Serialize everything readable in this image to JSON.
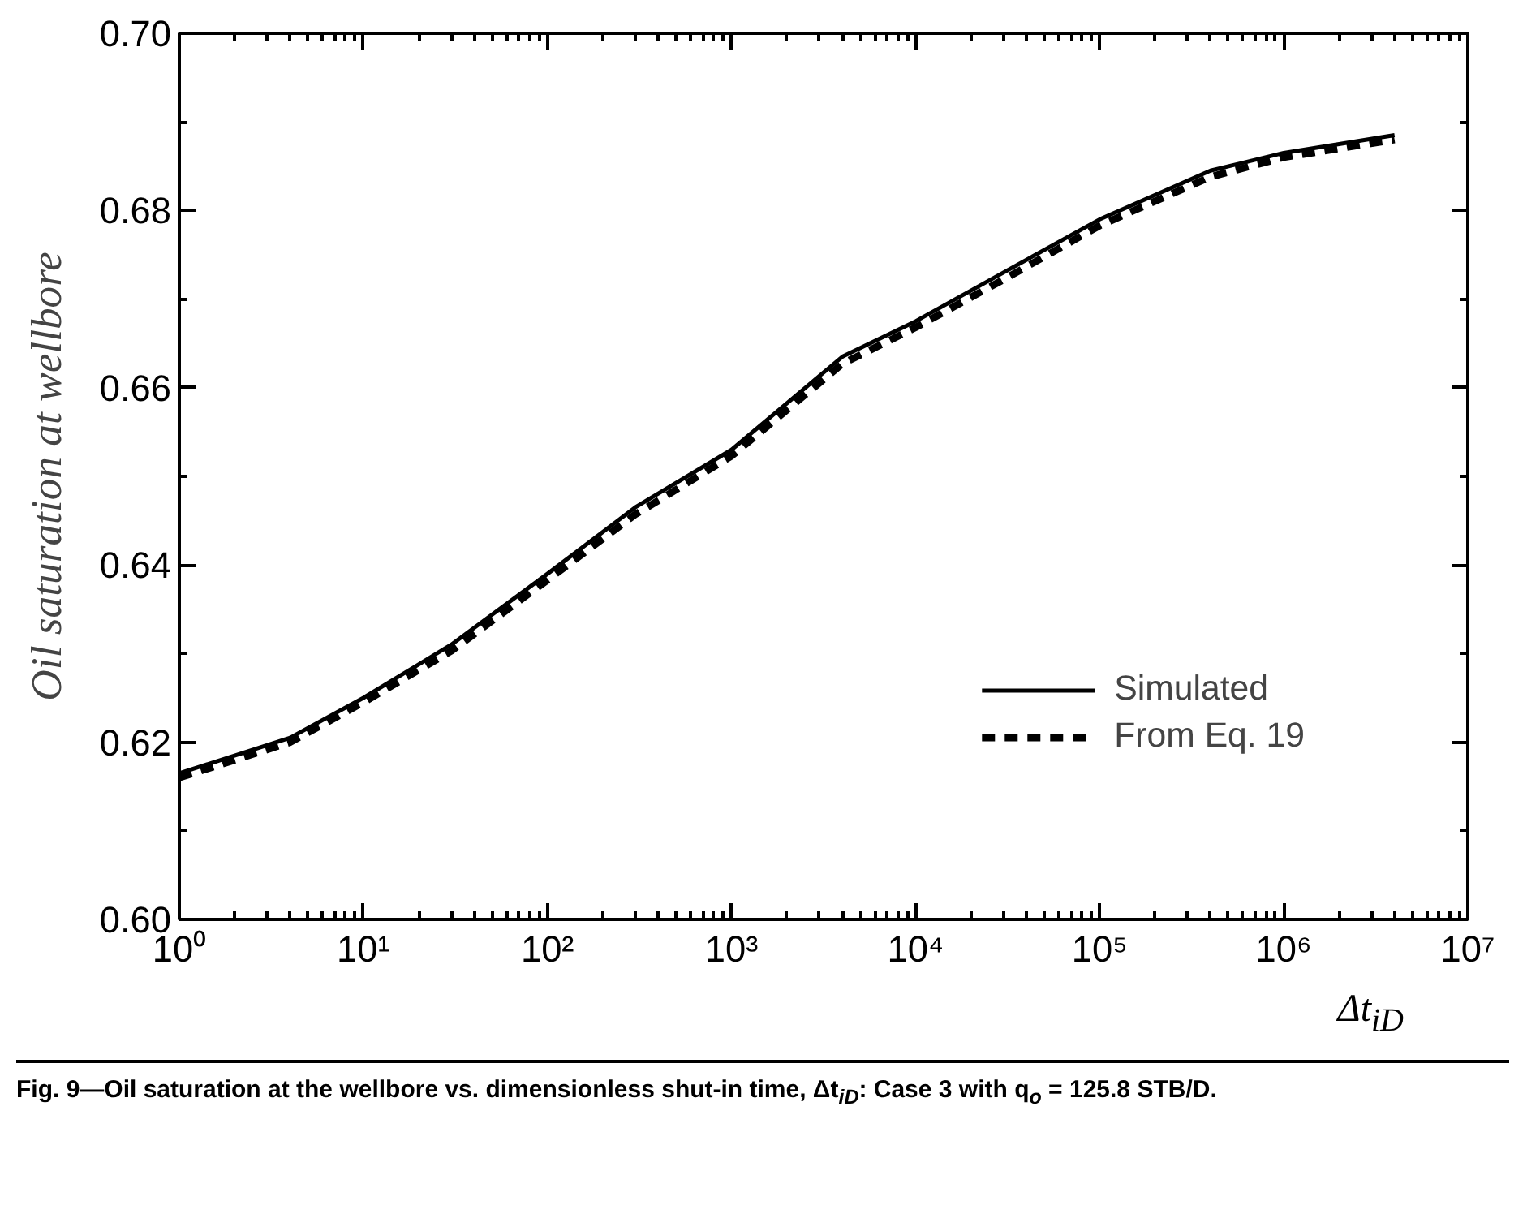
{
  "chart_data": {
    "type": "line",
    "xlabel": "Δt$_{iD}$",
    "ylabel": "Oil saturation at wellbore",
    "annotations": [
      "Fig. 9—Oil saturation at the wellbore vs. dimensionless shut-in time, Δt$_{iD}$: Case 3 with q$_{o}$ = 125.8 STB/D."
    ],
    "log": "x",
    "xlim": [
      1,
      10000000
    ],
    "xticks": [
      {
        "value": 1,
        "label": "10⁰"
      },
      {
        "value": 10,
        "label": "10¹"
      },
      {
        "value": 100,
        "label": "10²"
      },
      {
        "value": 1000,
        "label": "10³"
      },
      {
        "value": 10000,
        "label": "10⁴"
      },
      {
        "value": 100000,
        "label": "10⁵"
      },
      {
        "value": 1000000,
        "label": "10⁶"
      },
      {
        "value": 10000000,
        "label": "10⁷"
      }
    ],
    "ylim": [
      0.6,
      0.7
    ],
    "yticks": [
      {
        "value": 0.6,
        "label": "0.60"
      },
      {
        "value": 0.62,
        "label": "0.62"
      },
      {
        "value": 0.64,
        "label": "0.64"
      },
      {
        "value": 0.66,
        "label": "0.66"
      },
      {
        "value": 0.68,
        "label": "0.68"
      },
      {
        "value": 0.7,
        "label": "0.70"
      }
    ],
    "grid": false,
    "legend": "bottom right",
    "x": [
      1,
      4,
      10,
      30,
      100,
      300,
      1000,
      4000,
      10000,
      30000,
      100000,
      400000,
      1000000,
      4000000
    ],
    "series": [
      {
        "name": "Simulated",
        "color": "#000000",
        "line_style": "solid",
        "values": [
          0.6165,
          0.6205,
          0.625,
          0.631,
          0.639,
          0.6465,
          0.653,
          0.6635,
          0.6675,
          0.673,
          0.679,
          0.6845,
          0.6865,
          0.6885
        ]
      },
      {
        "name": "From Eq. 19",
        "color": "#000000",
        "line_style": "dashed",
        "values": [
          0.616,
          0.62,
          0.6245,
          0.6303,
          0.6383,
          0.6457,
          0.6523,
          0.6627,
          0.6668,
          0.6722,
          0.6783,
          0.6838,
          0.686,
          0.688
        ]
      }
    ]
  }
}
